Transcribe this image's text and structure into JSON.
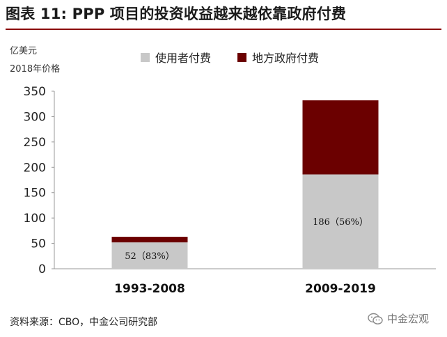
{
  "header": {
    "title": "图表 11: PPP 项目的投资收益越来越依靠政府付费"
  },
  "units": {
    "line1": "亿美元",
    "line2": "2018年价格"
  },
  "footer": {
    "source": "资料来源：CBO，中金公司研究部",
    "watermark": "中金宏观",
    "watermark_icon": "wechat-icon"
  },
  "colors": {
    "user_fee": "#c8c8c8",
    "government_payment": "#6b0000",
    "title_rule": "#8b0000"
  },
  "chart_data": {
    "type": "bar",
    "stacked": true,
    "categories": [
      "1993-2008",
      "2009-2019"
    ],
    "series": [
      {
        "name": "使用者付费",
        "values": [
          52,
          186
        ],
        "labels": [
          "52（83%）",
          "186（56%）"
        ]
      },
      {
        "name": "地方政府付费",
        "values": [
          11,
          146
        ],
        "labels": [
          "",
          ""
        ]
      }
    ],
    "ylim": [
      0,
      350
    ],
    "yticks": [
      0,
      50,
      100,
      150,
      200,
      250,
      300,
      350
    ],
    "grid": false,
    "legend": "top",
    "xlabel": "",
    "ylabel": ""
  }
}
